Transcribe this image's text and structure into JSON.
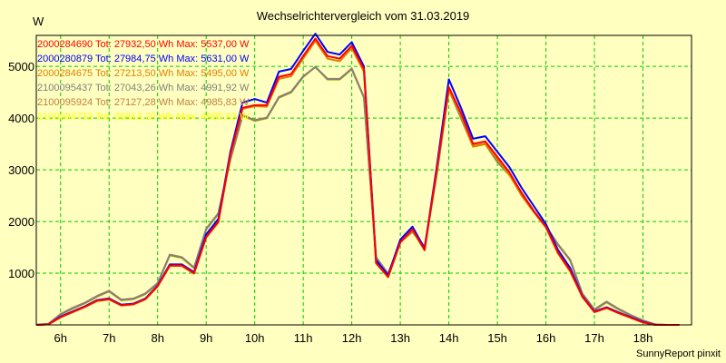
{
  "page": {
    "title": "Wechselrichtervergleich vom 31.03.2019",
    "y_unit": "W",
    "footer": "SunnyReport pinxit"
  },
  "colors": {
    "background": "#ffffc0",
    "plot_background": "#ffffc0",
    "grid": "#00cc00",
    "axis": "#000000"
  },
  "legend": [
    {
      "text": "2000284690 Tot: 27932,50 Wh Max: 5537,00 W",
      "color": "#ff0000"
    },
    {
      "text": "2000280879 Tot: 27984,75 Wh Max: 5631,00 W",
      "color": "#0000ff"
    },
    {
      "text": "2000284675 Tot: 27213,50 Wh Max: 5495,00 W",
      "color": "#e08000"
    },
    {
      "text": "2100095437 Tot: 27043,26 Wh Max: 4991,92 W",
      "color": "#808080"
    },
    {
      "text": "2100095924 Tot: 27127,28 Wh Max: 4985,83 W",
      "color": "#c08040"
    },
    {
      "text": "2100094733 Tot: 26913,20 Wh Max: 4985,83 W",
      "color": "#ffff00"
    }
  ],
  "chart_data": {
    "type": "line",
    "title": "Wechselrichtervergleich vom 31.03.2019",
    "ylabel": "W",
    "xlabel": "",
    "xlim": [
      5.5,
      19.0
    ],
    "ylim": [
      0,
      5600
    ],
    "x_ticks": [
      6,
      7,
      8,
      9,
      10,
      11,
      12,
      13,
      14,
      15,
      16,
      17,
      18
    ],
    "x_tick_labels": [
      "6h",
      "7h",
      "8h",
      "9h",
      "10h",
      "11h",
      "12h",
      "13h",
      "14h",
      "15h",
      "16h",
      "17h",
      "18h"
    ],
    "y_ticks": [
      1000,
      2000,
      3000,
      4000,
      5000
    ],
    "y_tick_labels": [
      "1000",
      "2000",
      "3000",
      "4000",
      "5000"
    ],
    "grid": true,
    "legend_position": "top-left",
    "x": [
      5.5,
      5.75,
      6.0,
      6.25,
      6.5,
      6.75,
      7.0,
      7.25,
      7.5,
      7.75,
      8.0,
      8.25,
      8.5,
      8.75,
      9.0,
      9.25,
      9.5,
      9.75,
      10.0,
      10.25,
      10.5,
      10.75,
      11.0,
      11.25,
      11.5,
      11.75,
      12.0,
      12.25,
      12.5,
      12.75,
      13.0,
      13.25,
      13.5,
      13.75,
      14.0,
      14.25,
      14.5,
      14.75,
      15.0,
      15.25,
      15.5,
      15.75,
      16.0,
      16.25,
      16.5,
      16.75,
      17.0,
      17.25,
      17.5,
      17.75,
      18.0,
      18.25,
      18.5,
      18.75
    ],
    "series": [
      {
        "name": "2000284690",
        "color": "#ff0000",
        "values": [
          0,
          10,
          150,
          250,
          350,
          470,
          500,
          380,
          400,
          500,
          750,
          1150,
          1150,
          1000,
          1700,
          2000,
          3300,
          4200,
          4250,
          4250,
          4800,
          4850,
          5200,
          5537,
          5200,
          5150,
          5400,
          4950,
          1200,
          930,
          1600,
          1850,
          1450,
          3000,
          4600,
          4100,
          3500,
          3550,
          3250,
          2950,
          2550,
          2200,
          1900,
          1400,
          1050,
          550,
          250,
          330,
          230,
          140,
          50,
          0,
          0,
          0
        ]
      },
      {
        "name": "2000280879",
        "color": "#0000ff",
        "values": [
          0,
          10,
          160,
          260,
          360,
          480,
          510,
          390,
          410,
          510,
          760,
          1170,
          1170,
          1020,
          1750,
          2050,
          3350,
          4300,
          4370,
          4300,
          4900,
          4950,
          5300,
          5631,
          5280,
          5230,
          5470,
          5000,
          1250,
          960,
          1650,
          1900,
          1480,
          3050,
          4750,
          4200,
          3600,
          3650,
          3350,
          3050,
          2650,
          2300,
          1950,
          1450,
          1100,
          560,
          260,
          340,
          240,
          150,
          60,
          0,
          0,
          0
        ]
      },
      {
        "name": "2000284675",
        "color": "#e08000",
        "values": [
          0,
          10,
          145,
          245,
          345,
          460,
          490,
          375,
          395,
          495,
          740,
          1140,
          1140,
          990,
          1690,
          1980,
          3280,
          4180,
          4230,
          4220,
          4760,
          4810,
          5150,
          5495,
          5150,
          5100,
          5350,
          4900,
          1190,
          920,
          1590,
          1830,
          1440,
          2980,
          4550,
          4050,
          3450,
          3500,
          3200,
          2900,
          2500,
          2180,
          1880,
          1380,
          1030,
          540,
          245,
          325,
          225,
          135,
          45,
          0,
          0,
          0
        ]
      },
      {
        "name": "2100095437",
        "color": "#808080",
        "values": [
          0,
          20,
          200,
          320,
          420,
          550,
          650,
          480,
          500,
          600,
          800,
          1350,
          1300,
          1100,
          1850,
          2150,
          3200,
          4050,
          3950,
          4000,
          4400,
          4500,
          4800,
          4992,
          4750,
          4750,
          4950,
          4400,
          1300,
          980,
          1600,
          1800,
          1500,
          2900,
          4550,
          4000,
          3450,
          3500,
          3150,
          2900,
          2550,
          2200,
          1900,
          1550,
          1250,
          600,
          290,
          440,
          300,
          180,
          80,
          10,
          0,
          0
        ]
      },
      {
        "name": "2100095924",
        "color": "#c08040",
        "values": [
          0,
          20,
          210,
          330,
          430,
          560,
          660,
          490,
          510,
          610,
          810,
          1360,
          1310,
          1110,
          1860,
          2160,
          3210,
          4060,
          3960,
          4010,
          4410,
          4510,
          4810,
          4986,
          4760,
          4760,
          4960,
          4410,
          1310,
          990,
          1610,
          1810,
          1510,
          2910,
          4560,
          4010,
          3460,
          3510,
          3160,
          2910,
          2560,
          2210,
          1910,
          1560,
          1260,
          610,
          300,
          450,
          310,
          190,
          90,
          10,
          0,
          0
        ]
      },
      {
        "name": "2100094733",
        "color": "#ffff00",
        "values": [
          0,
          20,
          190,
          310,
          410,
          540,
          640,
          470,
          490,
          590,
          790,
          1340,
          1290,
          1090,
          1840,
          2140,
          3190,
          4040,
          3940,
          3990,
          4390,
          4490,
          4790,
          4986,
          4740,
          4740,
          4940,
          4390,
          1290,
          970,
          1590,
          1790,
          1490,
          2890,
          4540,
          3990,
          3440,
          3490,
          3140,
          2890,
          2540,
          2190,
          1890,
          1540,
          1240,
          590,
          280,
          430,
          290,
          170,
          70,
          10,
          0,
          0
        ]
      }
    ]
  }
}
